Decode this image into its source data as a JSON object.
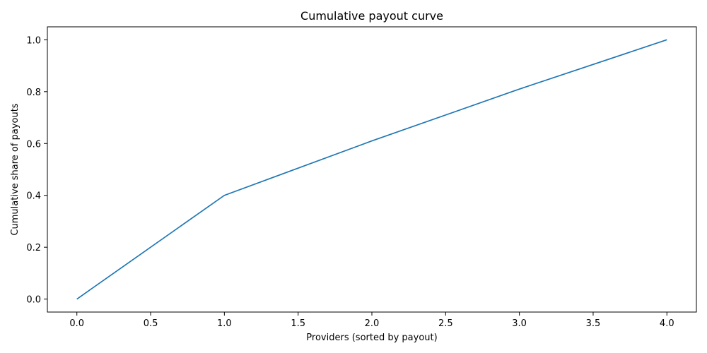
{
  "chart_data": {
    "type": "line",
    "title": "Cumulative payout curve",
    "x_label": "Providers (sorted by payout)",
    "y_label": "Cumulative share of payouts",
    "x": [
      0,
      1,
      2,
      3,
      4
    ],
    "series": [
      {
        "color": "#1f77b4",
        "values": [
          0,
          0.4,
          0.61,
          0.81,
          1.0
        ]
      }
    ],
    "xlim": [
      -0.2,
      4.2
    ],
    "ylim": [
      -0.05,
      1.05
    ],
    "xticks": [
      {
        "value": 0,
        "label": "0.0"
      },
      0.5,
      {
        "value": 1,
        "label": "1.0"
      },
      1.5,
      {
        "value": 2,
        "label": "2.0"
      },
      2.5,
      {
        "value": 3,
        "label": "3.0"
      },
      3.5,
      {
        "value": 4,
        "label": "4.0"
      }
    ],
    "yticks": [
      {
        "value": 0,
        "label": "0.0"
      },
      0.2,
      0.4,
      0.6,
      0.8,
      {
        "value": 1,
        "label": "1.0"
      }
    ],
    "grid": false
  }
}
